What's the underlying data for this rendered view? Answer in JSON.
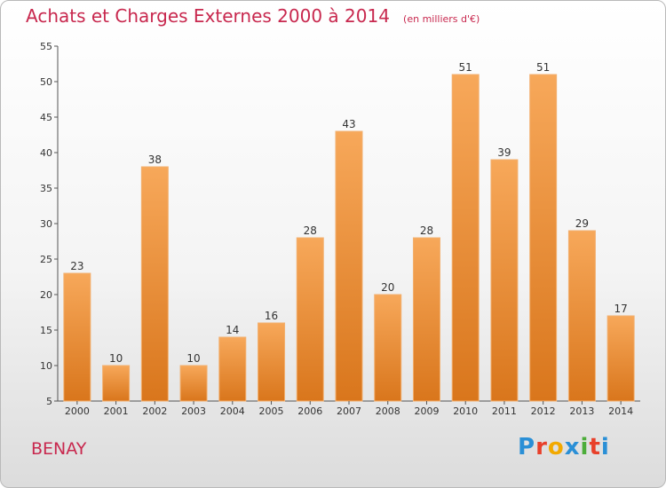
{
  "title": "Achats et Charges Externes 2000 à 2014",
  "subtitle": "(en milliers d'€)",
  "commune": "BENAY",
  "logo": {
    "text": "Proxiti",
    "letters": [
      "P",
      "r",
      "o",
      "x",
      "i",
      "t",
      "i"
    ],
    "colors": [
      "#2a8fd6",
      "#e8402a",
      "#f2a900",
      "#2a8fd6",
      "#4cad3a",
      "#e8402a",
      "#2a8fd6"
    ]
  },
  "colors": {
    "bar": "#f08a2a",
    "bar_light": "#f7a85a",
    "bar_dark": "#d9761c",
    "title": "#c8284e"
  },
  "chart_data": {
    "type": "bar",
    "title": "Achats et Charges Externes 2000 à 2014",
    "subtitle": "(en milliers d'€)",
    "xlabel": "",
    "ylabel": "",
    "categories": [
      "2000",
      "2001",
      "2002",
      "2003",
      "2004",
      "2005",
      "2006",
      "2007",
      "2008",
      "2009",
      "2010",
      "2011",
      "2012",
      "2013",
      "2014"
    ],
    "values": [
      23,
      10,
      38,
      10,
      14,
      16,
      28,
      43,
      20,
      28,
      51,
      39,
      51,
      29,
      17
    ],
    "ylim": [
      5,
      55
    ],
    "yticks": [
      5,
      10,
      15,
      20,
      25,
      30,
      35,
      40,
      45,
      50,
      55
    ],
    "grid": false,
    "legend": "none"
  }
}
